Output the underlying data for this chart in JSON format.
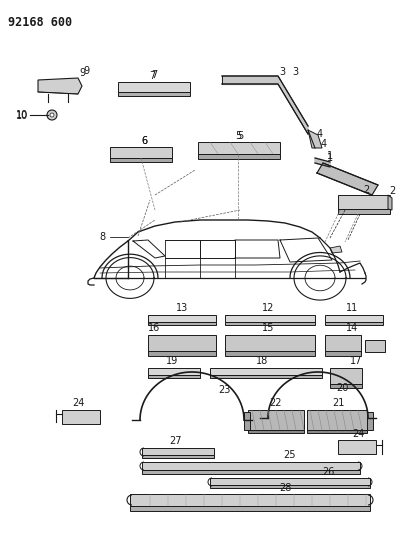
{
  "title": "92168 600",
  "bg_color": "#ffffff",
  "line_color": "#1a1a1a",
  "fig_width": 3.98,
  "fig_height": 5.33,
  "dpi": 100
}
